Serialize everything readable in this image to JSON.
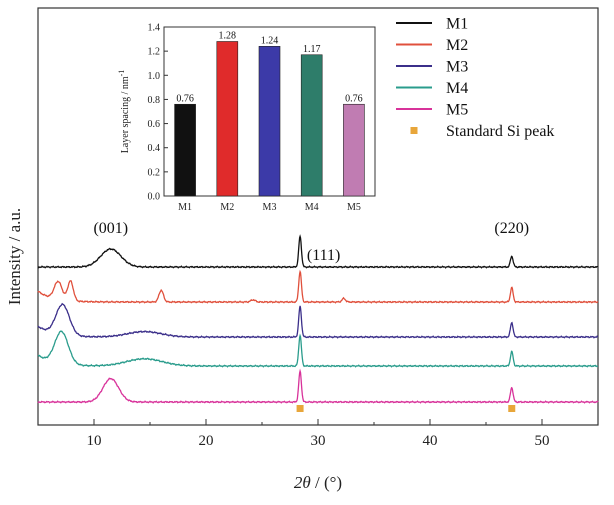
{
  "chart_data": [
    {
      "type": "line",
      "xlabel_main": "2θ",
      "xlabel_unit": " / (°)",
      "ylabel": "Intensity / a.u.",
      "xlim": [
        5,
        55
      ],
      "xticks": [
        10,
        20,
        30,
        40,
        50
      ],
      "yticks_shown": false,
      "legend_position": "top-right",
      "series": [
        {
          "name": "M1",
          "color": "#111111",
          "baseline_order": 1
        },
        {
          "name": "M2",
          "color": "#e0503c",
          "baseline_order": 2
        },
        {
          "name": "M3",
          "color": "#3b2f8a",
          "baseline_order": 3
        },
        {
          "name": "M4",
          "color": "#2a9c8c",
          "baseline_order": 4
        },
        {
          "name": "M5",
          "color": "#d8329a",
          "baseline_order": 5
        }
      ],
      "peaks": [
        {
          "series": "M1",
          "x": 11.5,
          "h": 1.0,
          "w": 0.9
        },
        {
          "series": "M1",
          "x": 28.4,
          "h": 1.7,
          "w": 0.12
        },
        {
          "series": "M1",
          "x": 47.3,
          "h": 0.6,
          "w": 0.12
        },
        {
          "series": "M2",
          "x": 6.8,
          "h": 1.0,
          "w": 0.35
        },
        {
          "series": "M2",
          "x": 7.9,
          "h": 1.1,
          "w": 0.25
        },
        {
          "series": "M2",
          "x": 16.0,
          "h": 0.65,
          "w": 0.2
        },
        {
          "series": "M2",
          "x": 24.2,
          "h": 0.12,
          "w": 0.2
        },
        {
          "series": "M2",
          "x": 28.4,
          "h": 1.7,
          "w": 0.12
        },
        {
          "series": "M2",
          "x": 32.3,
          "h": 0.2,
          "w": 0.15
        },
        {
          "series": "M2",
          "x": 47.3,
          "h": 0.8,
          "w": 0.12
        },
        {
          "series": "M3",
          "x": 7.2,
          "h": 1.7,
          "w": 0.6
        },
        {
          "series": "M3",
          "x": 14.5,
          "h": 0.3,
          "w": 1.5
        },
        {
          "series": "M3",
          "x": 28.4,
          "h": 1.7,
          "w": 0.12
        },
        {
          "series": "M3",
          "x": 47.3,
          "h": 0.8,
          "w": 0.12
        },
        {
          "series": "M4",
          "x": 7.1,
          "h": 1.8,
          "w": 0.6
        },
        {
          "series": "M4",
          "x": 14.5,
          "h": 0.4,
          "w": 1.6
        },
        {
          "series": "M4",
          "x": 28.4,
          "h": 1.7,
          "w": 0.12
        },
        {
          "series": "M4",
          "x": 47.3,
          "h": 0.8,
          "w": 0.12
        },
        {
          "series": "M5",
          "x": 11.5,
          "h": 1.3,
          "w": 0.7
        },
        {
          "series": "M5",
          "x": 28.4,
          "h": 1.7,
          "w": 0.12
        },
        {
          "series": "M5",
          "x": 47.3,
          "h": 0.8,
          "w": 0.12
        }
      ],
      "annotations": [
        {
          "text": "(001)",
          "x": 11.5
        },
        {
          "text": "(111)",
          "x": 30.5
        },
        {
          "text": "(220)",
          "x": 47.3
        }
      ],
      "reference_markers": {
        "name": "Standard Si peak",
        "color": "#e8a63a",
        "x": [
          28.4,
          47.3
        ]
      }
    },
    {
      "type": "bar",
      "ylabel": "Layer spacing / nm",
      "ylabel_sup": "-1",
      "categories": [
        "M1",
        "M2",
        "M3",
        "M4",
        "M5"
      ],
      "values": [
        0.76,
        1.28,
        1.24,
        1.17,
        0.76
      ],
      "value_labels": [
        "0.76",
        "1.28",
        "1.24",
        "1.17",
        "0.76"
      ],
      "colors": [
        "#111111",
        "#e02b2b",
        "#3c3aa8",
        "#2e7d6a",
        "#c07cb2"
      ],
      "ylim": [
        0,
        1.4
      ],
      "yticks": [
        "0.0",
        "0.2",
        "0.4",
        "0.6",
        "0.8",
        "1.0",
        "1.2",
        "1.4"
      ]
    }
  ]
}
